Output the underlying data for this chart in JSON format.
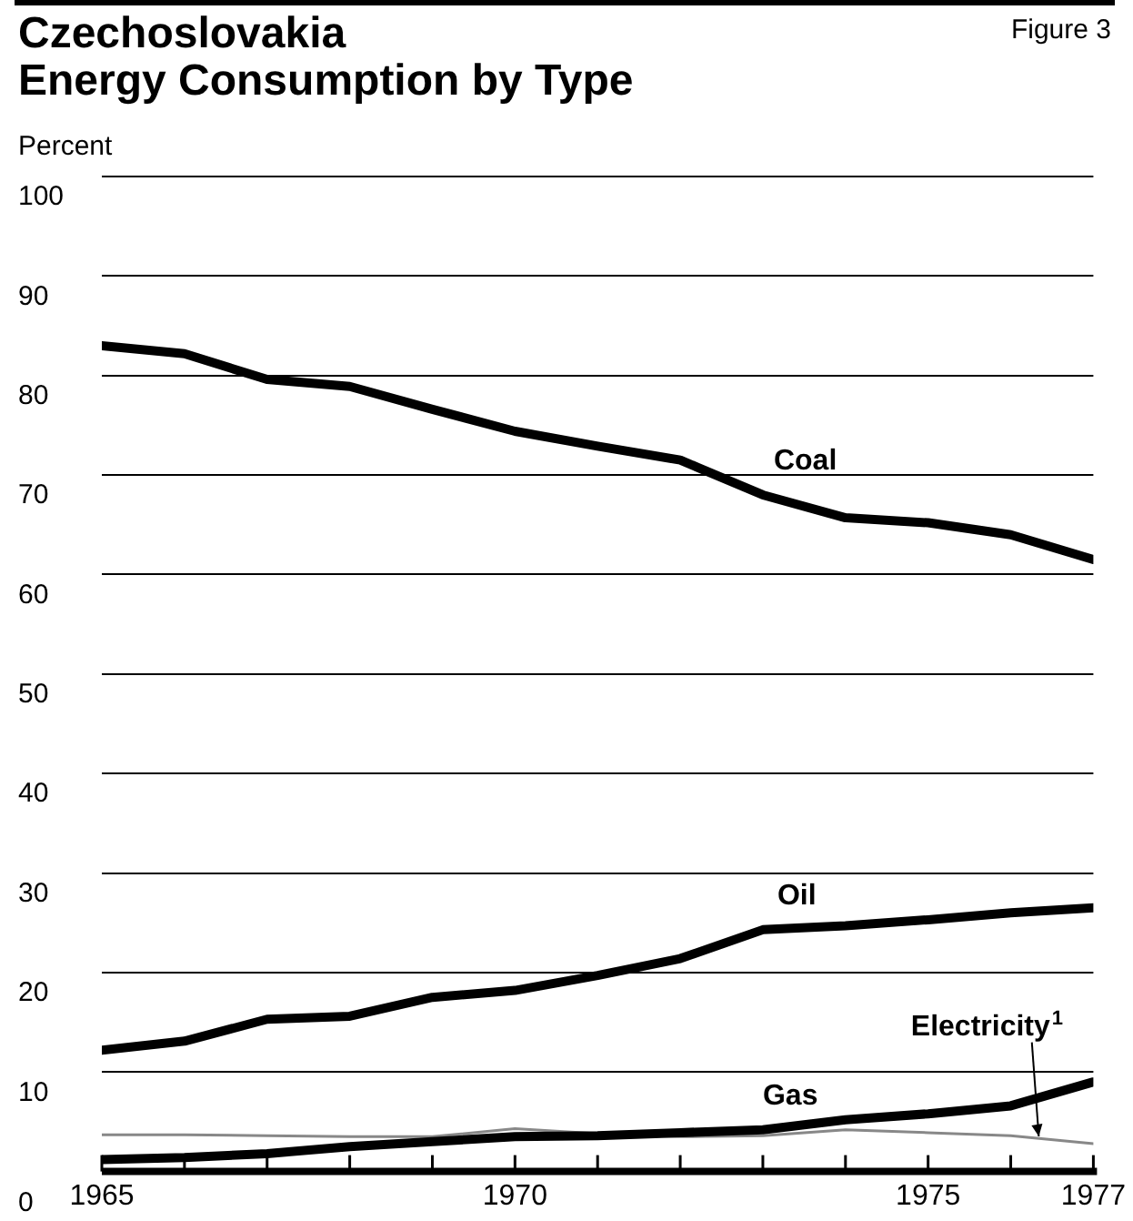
{
  "chart_data": {
    "type": "line",
    "title": "Czechoslovakia",
    "subtitle": "Energy Consumption by Type",
    "ylabel": "Percent",
    "annotations": [
      "Figure 3"
    ],
    "x": [
      1965,
      1966,
      1967,
      1968,
      1969,
      1970,
      1971,
      1972,
      1973,
      1974,
      1975,
      1976,
      1977
    ],
    "series": [
      {
        "name": "Coal",
        "color": "#000000",
        "values": [
          83,
          82.2,
          79.6,
          78.9,
          76.6,
          74.4,
          72.9,
          71.5,
          68,
          65.7,
          65.2,
          64,
          61.5
        ]
      },
      {
        "name": "Oil",
        "color": "#000000",
        "values": [
          12.2,
          13.1,
          15.3,
          15.6,
          17.5,
          18.2,
          19.7,
          21.4,
          24.3,
          24.7,
          25.3,
          26,
          26.5
        ]
      },
      {
        "name": "Gas",
        "color": "#000000",
        "values": [
          1.2,
          1.4,
          1.8,
          2.5,
          3,
          3.5,
          3.6,
          3.9,
          4.2,
          5.2,
          5.8,
          6.6,
          9
        ]
      },
      {
        "name": "Electricity$^{1}$",
        "color": "#888888",
        "values": [
          3.7,
          3.7,
          3.6,
          3.5,
          3.5,
          4.3,
          3.8,
          3.5,
          3.6,
          4.2,
          3.9,
          3.6,
          2.8
        ]
      }
    ],
    "xlim": [
      1965,
      1977
    ],
    "xticks": [
      1965,
      {
        "value": 1966,
        "label": null
      },
      {
        "value": 1967,
        "label": null
      },
      {
        "value": 1968,
        "label": null
      },
      {
        "value": 1969,
        "label": null
      },
      1970,
      {
        "value": 1971,
        "label": null
      },
      {
        "value": 1972,
        "label": null
      },
      {
        "value": 1973,
        "label": null
      },
      {
        "value": 1974,
        "label": null
      },
      1975,
      {
        "value": 1976,
        "label": null
      },
      1977
    ],
    "ylim": [
      0,
      100
    ],
    "yticks": [
      0,
      10,
      20,
      30,
      40,
      50,
      60,
      70,
      80,
      90,
      100
    ],
    "grid": "y",
    "legend": false,
    "marker": "none",
    "line_style": "solid"
  }
}
